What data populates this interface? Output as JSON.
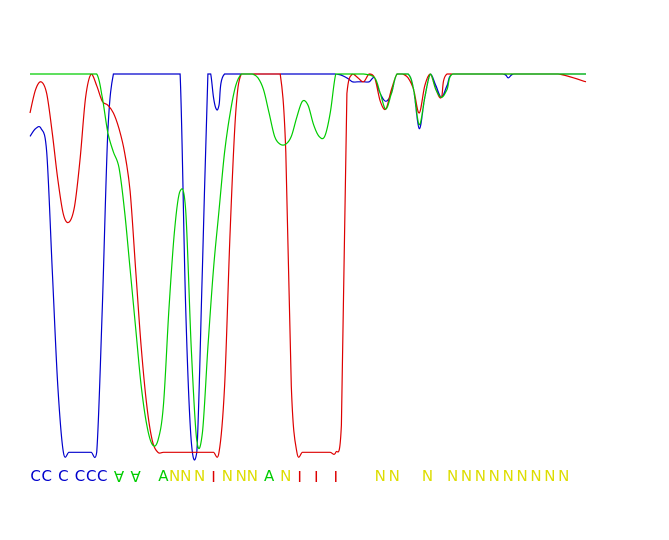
{
  "chart_data": {
    "type": "line",
    "title": "",
    "xlabel": "",
    "ylabel": "",
    "x_range": [
      0,
      100
    ],
    "y_range": [
      0,
      1
    ],
    "grid": false,
    "legend": "none",
    "series": [
      {
        "color": "#0000cc",
        "points": [
          [
            0,
            0.84
          ],
          [
            1,
            0.86
          ],
          [
            2,
            0.86
          ],
          [
            3,
            0.8
          ],
          [
            4,
            0.5
          ],
          [
            5,
            0.2
          ],
          [
            6,
            0.03
          ],
          [
            7,
            0.03
          ],
          [
            8,
            0.03
          ],
          [
            9,
            0.03
          ],
          [
            10,
            0.03
          ],
          [
            11,
            0.03
          ],
          [
            12,
            0.03
          ],
          [
            13,
            0.4
          ],
          [
            14,
            0.85
          ],
          [
            15,
            1.0
          ],
          [
            16,
            1.0
          ],
          [
            18,
            1.0
          ],
          [
            20,
            1.0
          ],
          [
            22,
            1.0
          ],
          [
            24,
            1.0
          ],
          [
            26,
            1.0
          ],
          [
            27,
            1.0
          ],
          [
            28,
            0.4
          ],
          [
            29,
            0.06
          ],
          [
            30,
            0.03
          ],
          [
            31,
            0.5
          ],
          [
            32,
            1.0
          ],
          [
            32.5,
            1.0
          ],
          [
            33,
            0.94
          ],
          [
            33.5,
            0.91
          ],
          [
            34,
            0.92
          ],
          [
            35,
            1.0
          ],
          [
            40,
            1.0
          ],
          [
            45,
            1.0
          ],
          [
            50,
            1.0
          ],
          [
            55,
            1.0
          ],
          [
            57,
            0.99
          ],
          [
            58,
            0.98
          ],
          [
            59,
            0.98
          ],
          [
            60,
            0.98
          ],
          [
            61,
            0.98
          ],
          [
            62,
            0.99
          ],
          [
            63,
            0.95
          ],
          [
            64,
            0.93
          ],
          [
            65,
            0.95
          ],
          [
            66,
            1.0
          ],
          [
            68,
            1.0
          ],
          [
            69,
            0.96
          ],
          [
            70,
            0.86
          ],
          [
            71,
            0.94
          ],
          [
            72,
            1.0
          ],
          [
            73,
            0.97
          ],
          [
            74,
            0.94
          ],
          [
            75,
            0.97
          ],
          [
            76,
            1.0
          ],
          [
            80,
            1.0
          ],
          [
            85,
            1.0
          ],
          [
            86,
            0.99
          ],
          [
            87,
            1.0
          ],
          [
            90,
            1.0
          ],
          [
            95,
            1.0
          ],
          [
            100,
            1.0
          ]
        ]
      },
      {
        "color": "#dd0000",
        "points": [
          [
            0,
            0.9
          ],
          [
            1,
            0.96
          ],
          [
            2,
            0.98
          ],
          [
            3,
            0.95
          ],
          [
            4,
            0.85
          ],
          [
            5,
            0.73
          ],
          [
            6,
            0.64
          ],
          [
            7,
            0.62
          ],
          [
            8,
            0.66
          ],
          [
            9,
            0.78
          ],
          [
            10,
            0.94
          ],
          [
            11,
            1.0
          ],
          [
            12,
            0.97
          ],
          [
            13,
            0.93
          ],
          [
            14,
            0.92
          ],
          [
            15,
            0.9
          ],
          [
            16,
            0.86
          ],
          [
            17,
            0.8
          ],
          [
            18,
            0.7
          ],
          [
            19,
            0.5
          ],
          [
            20,
            0.3
          ],
          [
            21,
            0.15
          ],
          [
            22,
            0.06
          ],
          [
            23,
            0.03
          ],
          [
            24,
            0.03
          ],
          [
            25,
            0.03
          ],
          [
            26,
            0.03
          ],
          [
            27,
            0.03
          ],
          [
            28,
            0.03
          ],
          [
            29,
            0.03
          ],
          [
            30,
            0.03
          ],
          [
            31,
            0.03
          ],
          [
            32,
            0.03
          ],
          [
            33,
            0.03
          ],
          [
            34,
            0.03
          ],
          [
            35,
            0.2
          ],
          [
            36,
            0.6
          ],
          [
            37,
            0.9
          ],
          [
            38,
            1.0
          ],
          [
            40,
            1.0
          ],
          [
            42,
            1.0
          ],
          [
            44,
            1.0
          ],
          [
            45,
            1.0
          ],
          [
            46,
            0.8
          ],
          [
            47,
            0.2
          ],
          [
            48,
            0.03
          ],
          [
            49,
            0.03
          ],
          [
            50,
            0.03
          ],
          [
            51,
            0.03
          ],
          [
            52,
            0.03
          ],
          [
            53,
            0.03
          ],
          [
            54,
            0.03
          ],
          [
            55,
            0.03
          ],
          [
            56,
            0.1
          ],
          [
            57,
            0.95
          ],
          [
            58,
            1.0
          ],
          [
            59,
            0.99
          ],
          [
            60,
            0.98
          ],
          [
            61,
            1.0
          ],
          [
            62,
            0.99
          ],
          [
            63,
            0.93
          ],
          [
            64,
            0.91
          ],
          [
            65,
            0.96
          ],
          [
            66,
            1.0
          ],
          [
            67,
            1.0
          ],
          [
            68,
            0.99
          ],
          [
            69,
            0.96
          ],
          [
            70,
            0.9
          ],
          [
            71,
            0.97
          ],
          [
            72,
            1.0
          ],
          [
            73,
            0.96
          ],
          [
            74,
            0.94
          ],
          [
            75,
            1.0
          ],
          [
            80,
            1.0
          ],
          [
            90,
            1.0
          ],
          [
            95,
            1.0
          ],
          [
            100,
            0.98
          ]
        ]
      },
      {
        "color": "#00cc00",
        "points": [
          [
            0,
            1.0
          ],
          [
            2,
            1.0
          ],
          [
            4,
            1.0
          ],
          [
            6,
            1.0
          ],
          [
            8,
            1.0
          ],
          [
            10,
            1.0
          ],
          [
            12,
            1.0
          ],
          [
            13,
            0.94
          ],
          [
            14,
            0.85
          ],
          [
            15,
            0.8
          ],
          [
            16,
            0.76
          ],
          [
            17,
            0.65
          ],
          [
            18,
            0.5
          ],
          [
            19,
            0.35
          ],
          [
            20,
            0.2
          ],
          [
            21,
            0.1
          ],
          [
            22,
            0.05
          ],
          [
            23,
            0.06
          ],
          [
            24,
            0.15
          ],
          [
            25,
            0.4
          ],
          [
            26,
            0.6
          ],
          [
            27,
            0.7
          ],
          [
            28,
            0.65
          ],
          [
            29,
            0.3
          ],
          [
            30,
            0.06
          ],
          [
            31,
            0.08
          ],
          [
            32,
            0.3
          ],
          [
            33,
            0.5
          ],
          [
            34,
            0.65
          ],
          [
            35,
            0.8
          ],
          [
            36,
            0.9
          ],
          [
            37,
            0.97
          ],
          [
            38,
            1.0
          ],
          [
            39,
            1.0
          ],
          [
            40,
            1.0
          ],
          [
            41,
            0.99
          ],
          [
            42,
            0.96
          ],
          [
            43,
            0.9
          ],
          [
            44,
            0.84
          ],
          [
            45,
            0.82
          ],
          [
            46,
            0.82
          ],
          [
            47,
            0.84
          ],
          [
            48,
            0.89
          ],
          [
            49,
            0.93
          ],
          [
            50,
            0.92
          ],
          [
            51,
            0.87
          ],
          [
            52,
            0.84
          ],
          [
            53,
            0.84
          ],
          [
            54,
            0.9
          ],
          [
            55,
            1.0
          ],
          [
            56,
            1.0
          ],
          [
            58,
            1.0
          ],
          [
            60,
            1.0
          ],
          [
            62,
            0.99
          ],
          [
            63,
            0.95
          ],
          [
            64,
            0.91
          ],
          [
            65,
            0.95
          ],
          [
            66,
            1.0
          ],
          [
            68,
            1.0
          ],
          [
            69,
            0.96
          ],
          [
            70,
            0.87
          ],
          [
            71,
            0.94
          ],
          [
            72,
            1.0
          ],
          [
            73,
            0.96
          ],
          [
            74,
            0.94
          ],
          [
            75,
            0.96
          ],
          [
            76,
            1.0
          ],
          [
            80,
            1.0
          ],
          [
            85,
            1.0
          ],
          [
            90,
            1.0
          ],
          [
            95,
            1.0
          ],
          [
            100,
            1.0
          ]
        ]
      }
    ],
    "sequence_labels": [
      {
        "text": "C",
        "color": "#0000cc",
        "x": 1,
        "rotated": false
      },
      {
        "text": "C",
        "color": "#0000cc",
        "x": 3,
        "rotated": false
      },
      {
        "text": "C",
        "color": "#0000cc",
        "x": 6,
        "rotated": false
      },
      {
        "text": "C",
        "color": "#0000cc",
        "x": 9,
        "rotated": false
      },
      {
        "text": "C",
        "color": "#0000cc",
        "x": 11,
        "rotated": false
      },
      {
        "text": "C",
        "color": "#0000cc",
        "x": 13,
        "rotated": false
      },
      {
        "text": "A",
        "color": "#00cc00",
        "x": 16,
        "rotated": true
      },
      {
        "text": "A",
        "color": "#00cc00",
        "x": 19,
        "rotated": true
      },
      {
        "text": "A",
        "color": "#00cc00",
        "x": 24,
        "rotated": false
      },
      {
        "text": "N",
        "color": "#dddd00",
        "x": 26,
        "rotated": false
      },
      {
        "text": "N",
        "color": "#dddd00",
        "x": 28,
        "rotated": false
      },
      {
        "text": "N",
        "color": "#dddd00",
        "x": 30.5,
        "rotated": false
      },
      {
        "text": "I",
        "color": "#dd0000",
        "x": 33,
        "rotated": true
      },
      {
        "text": "N",
        "color": "#dddd00",
        "x": 35.5,
        "rotated": false
      },
      {
        "text": "N",
        "color": "#dddd00",
        "x": 38,
        "rotated": false
      },
      {
        "text": "N",
        "color": "#dddd00",
        "x": 40,
        "rotated": false
      },
      {
        "text": "A",
        "color": "#00cc00",
        "x": 43,
        "rotated": false
      },
      {
        "text": "N",
        "color": "#dddd00",
        "x": 46,
        "rotated": false
      },
      {
        "text": "I",
        "color": "#dd0000",
        "x": 48.5,
        "rotated": true
      },
      {
        "text": "I",
        "color": "#dd0000",
        "x": 51.5,
        "rotated": true
      },
      {
        "text": "I",
        "color": "#dd0000",
        "x": 55,
        "rotated": true
      },
      {
        "text": "N",
        "color": "#dddd00",
        "x": 63,
        "rotated": false
      },
      {
        "text": "N",
        "color": "#dddd00",
        "x": 65.5,
        "rotated": false
      },
      {
        "text": "N",
        "color": "#dddd00",
        "x": 71.5,
        "rotated": false
      },
      {
        "text": "N",
        "color": "#dddd00",
        "x": 76,
        "rotated": false
      },
      {
        "text": "N",
        "color": "#dddd00",
        "x": 78.5,
        "rotated": false
      },
      {
        "text": "N",
        "color": "#dddd00",
        "x": 81,
        "rotated": false
      },
      {
        "text": "N",
        "color": "#dddd00",
        "x": 83.5,
        "rotated": false
      },
      {
        "text": "N",
        "color": "#dddd00",
        "x": 86,
        "rotated": false
      },
      {
        "text": "N",
        "color": "#dddd00",
        "x": 88.5,
        "rotated": false
      },
      {
        "text": "N",
        "color": "#dddd00",
        "x": 91,
        "rotated": false
      },
      {
        "text": "N",
        "color": "#dddd00",
        "x": 93.5,
        "rotated": false
      },
      {
        "text": "N",
        "color": "#dddd00",
        "x": 96,
        "rotated": false
      }
    ]
  }
}
